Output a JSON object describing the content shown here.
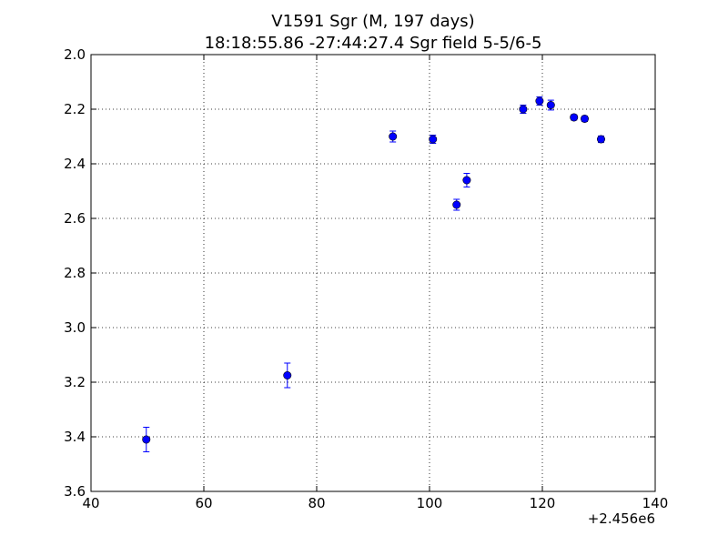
{
  "chart_data": {
    "type": "scatter",
    "title": "V1591 Sgr  (M, 197 days)",
    "subtitle": "18:18:55.86 -27:44:27.4 Sgr field 5-5/6-5",
    "xlabel": "",
    "ylabel": "",
    "x_offset_label": "+2.456e6",
    "xlim": [
      40,
      140
    ],
    "ylim": [
      2.0,
      3.6
    ],
    "y_inverted": true,
    "grid": true,
    "x_ticks": [
      40,
      60,
      80,
      100,
      120,
      140
    ],
    "x_tick_labels": [
      "40",
      "60",
      "80",
      "100",
      "120",
      "140"
    ],
    "y_ticks": [
      2.0,
      2.2,
      2.4,
      2.6,
      2.8,
      3.0,
      3.2,
      3.4,
      3.6
    ],
    "y_tick_labels": [
      "2.0",
      "2.2",
      "2.4",
      "2.6",
      "2.8",
      "3.0",
      "3.2",
      "3.4",
      "3.6"
    ],
    "marker_color": "#0000ff",
    "points": [
      {
        "x": 49.8,
        "y": 3.41,
        "err": 0.045
      },
      {
        "x": 74.8,
        "y": 3.175,
        "err": 0.045
      },
      {
        "x": 93.5,
        "y": 2.3,
        "err": 0.02
      },
      {
        "x": 100.6,
        "y": 2.31,
        "err": 0.015
      },
      {
        "x": 104.8,
        "y": 2.55,
        "err": 0.02
      },
      {
        "x": 106.6,
        "y": 2.46,
        "err": 0.025
      },
      {
        "x": 116.6,
        "y": 2.2,
        "err": 0.015
      },
      {
        "x": 119.5,
        "y": 2.17,
        "err": 0.015
      },
      {
        "x": 121.5,
        "y": 2.185,
        "err": 0.018
      },
      {
        "x": 125.6,
        "y": 2.23,
        "err": 0.01
      },
      {
        "x": 127.5,
        "y": 2.235,
        "err": 0.01
      },
      {
        "x": 130.4,
        "y": 2.31,
        "err": 0.012
      }
    ]
  }
}
